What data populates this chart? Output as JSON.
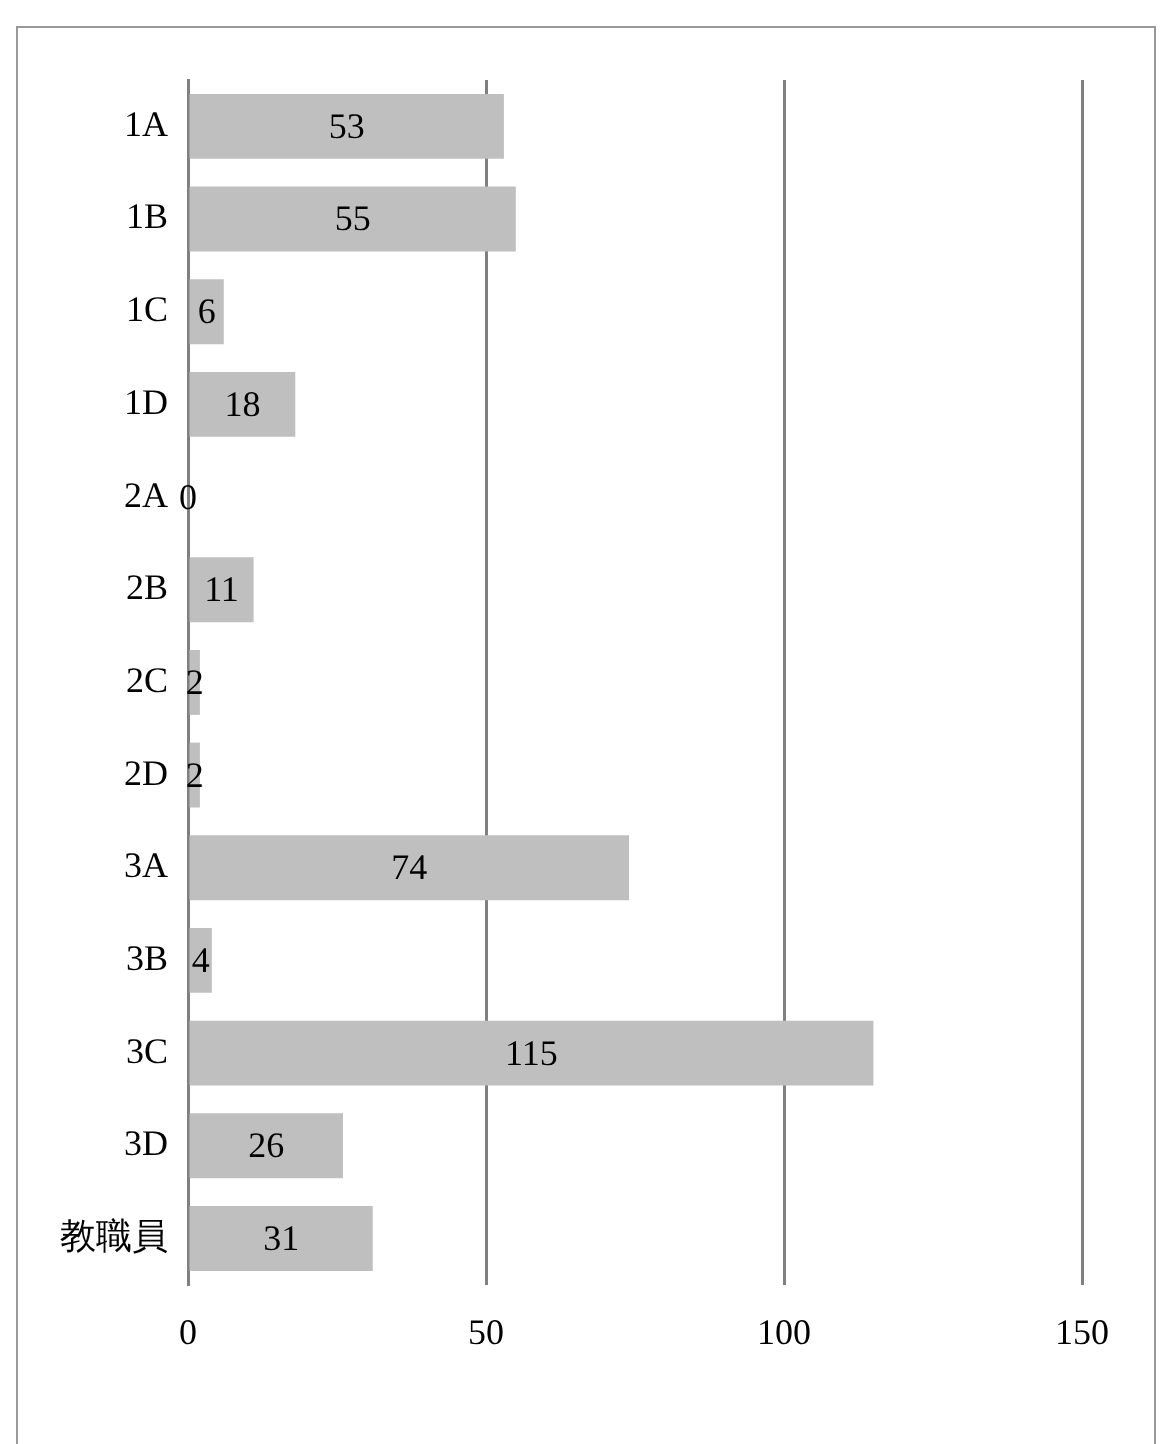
{
  "chart_data": {
    "type": "bar",
    "orientation": "horizontal",
    "categories": [
      "1A",
      "1B",
      "1C",
      "1D",
      "2A",
      "2B",
      "2C",
      "2D",
      "3A",
      "3B",
      "3C",
      "3D",
      "教職員"
    ],
    "values": [
      53,
      55,
      6,
      18,
      0,
      11,
      2,
      2,
      74,
      4,
      115,
      26,
      31
    ],
    "color": "#bfbfbf",
    "xlim": [
      0,
      150
    ],
    "xticks": [
      0,
      50,
      100,
      150
    ],
    "grid": "x",
    "data_labels": true,
    "legend": false
  }
}
